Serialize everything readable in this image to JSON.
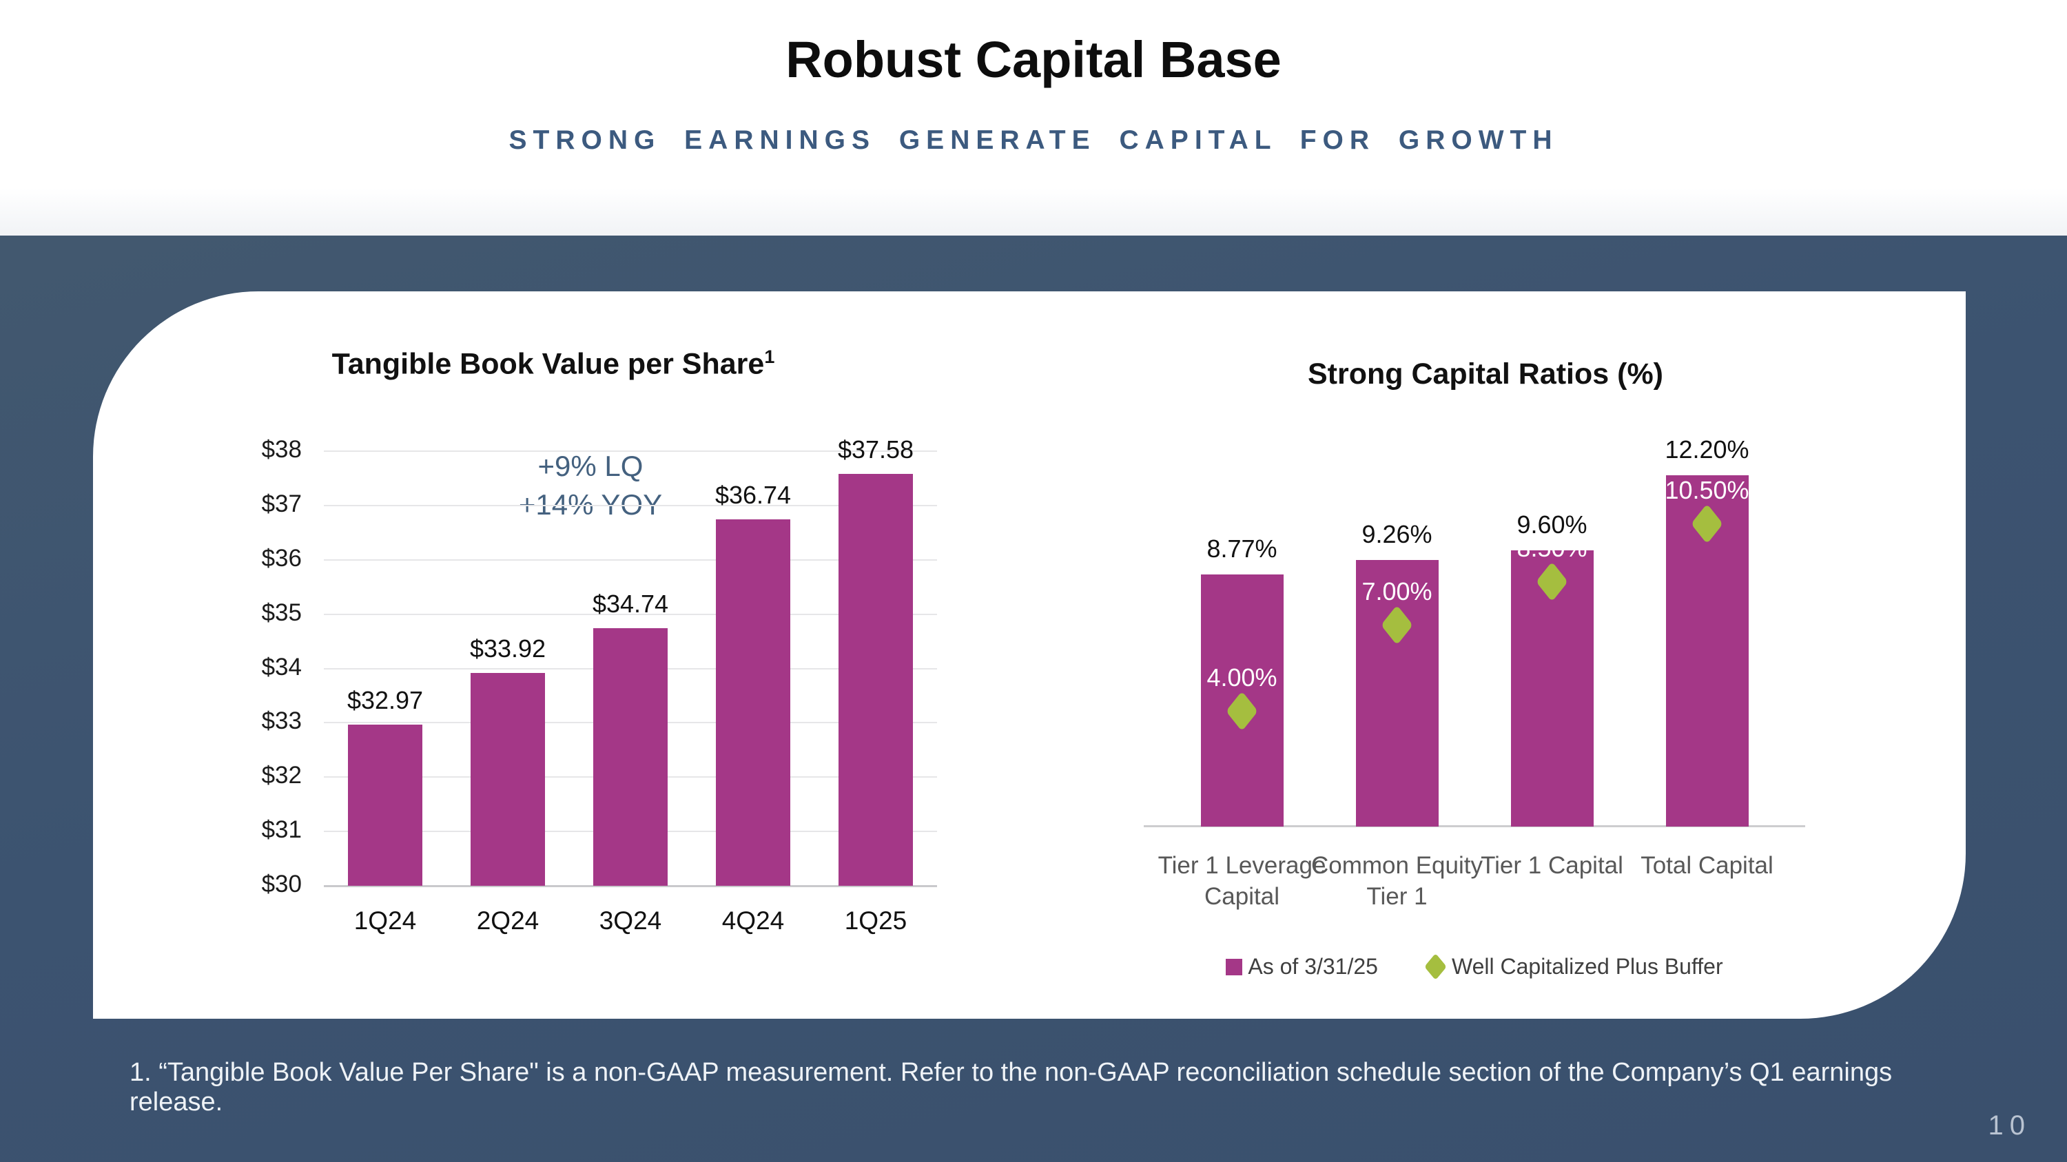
{
  "slide": {
    "title": "Robust Capital Base",
    "subtitle": "STRONG EARNINGS GENERATE CAPITAL FOR GROWTH",
    "footnote": "1. “Tangible Book Value Per Share\" is a non-GAAP measurement. Refer to the non-GAAP reconciliation schedule section of the Company’s Q1 earnings release.",
    "page_number": "10"
  },
  "colors": {
    "bar_magenta": "#A43787",
    "marker_green": "#A5BE3F",
    "background_blue": "#3C5370",
    "subtitle_blue": "#3C5A7F",
    "annotation_blue": "#44617F"
  },
  "chart_data": [
    {
      "type": "bar",
      "title": "Tangible Book Value per Share",
      "title_superscript": "1",
      "categories": [
        "1Q24",
        "2Q24",
        "3Q24",
        "4Q24",
        "1Q25"
      ],
      "values": [
        32.97,
        33.92,
        34.74,
        36.74,
        37.58
      ],
      "value_labels": [
        "$32.97",
        "$33.92",
        "$34.74",
        "$36.74",
        "$37.58"
      ],
      "ylim": [
        30,
        38
      ],
      "ytick_values": [
        30,
        31,
        32,
        33,
        34,
        35,
        36,
        37,
        38
      ],
      "ytick_labels": [
        "$30",
        "$31",
        "$32",
        "$33",
        "$34",
        "$35",
        "$36",
        "$37",
        "$38"
      ],
      "grid": true,
      "annotation": [
        "+9% LQ",
        "+14% YOY"
      ],
      "bar_color": "#A43787"
    },
    {
      "type": "bar",
      "title": "Strong Capital Ratios (%)",
      "categories": [
        "Tier 1 Leverage Capital",
        "Common Equity Tier 1",
        "Tier 1 Capital",
        "Total Capital"
      ],
      "series": [
        {
          "name": "As of 3/31/25",
          "type": "bar",
          "color": "#A43787",
          "values": [
            8.77,
            9.26,
            9.6,
            12.2
          ],
          "value_labels": [
            "8.77%",
            "9.26%",
            "9.60%",
            "12.20%"
          ]
        },
        {
          "name": "Well Capitalized Plus Buffer",
          "type": "diamond-marker",
          "color": "#A5BE3F",
          "values": [
            4.0,
            7.0,
            8.5,
            10.5
          ],
          "value_labels": [
            "4.00%",
            "7.00%",
            "8.50%",
            "10.50%"
          ]
        }
      ],
      "ylim": [
        0,
        13.5
      ],
      "grid": false,
      "legend_position": "bottom"
    }
  ]
}
